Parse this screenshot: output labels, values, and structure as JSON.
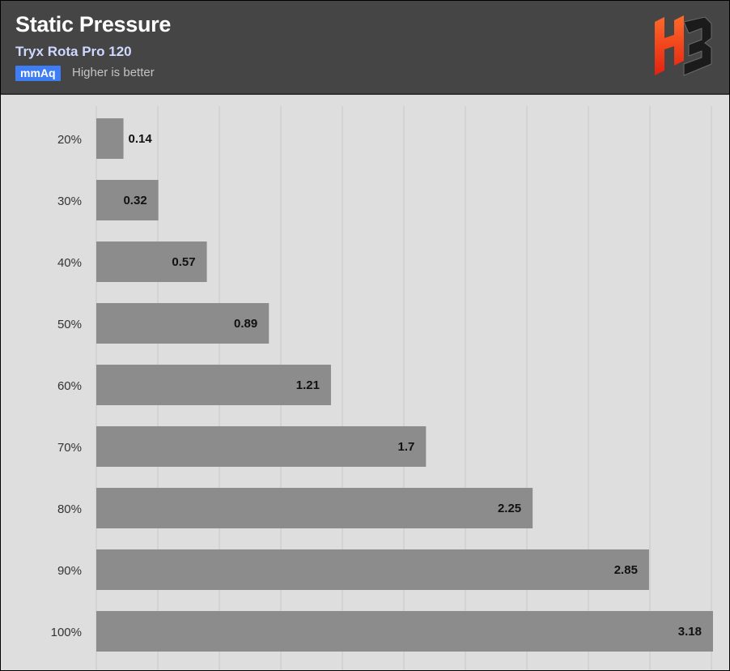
{
  "header": {
    "title": "Static Pressure",
    "subtitle": "Tryx Rota Pro 120",
    "unit": "mmAq",
    "note": "Higher is better"
  },
  "logo": {
    "icon": "hb-logo-icon",
    "colors": [
      "#ff3b1f",
      "#1a1a1a"
    ]
  },
  "colors": {
    "bar": "#8c8c8c",
    "plot_background": "#dedede",
    "header_background": "#454545",
    "unit_badge": "#3f7df5",
    "gridline": "#c8c8c8"
  },
  "chart_data": {
    "type": "bar",
    "orientation": "horizontal",
    "title": "Static Pressure",
    "subtitle": "Tryx Rota Pro 120",
    "unit": "mmAq",
    "categories": [
      "20%",
      "30%",
      "40%",
      "50%",
      "60%",
      "70%",
      "80%",
      "90%",
      "100%"
    ],
    "values": [
      0.14,
      0.32,
      0.57,
      0.89,
      1.21,
      1.7,
      2.25,
      2.85,
      3.18
    ],
    "value_labels": [
      "0.14",
      "0.32",
      "0.57",
      "0.89",
      "1.21",
      "1.7",
      "2.25",
      "2.85",
      "3.18"
    ],
    "xlim": [
      0,
      3.18
    ],
    "grid": true,
    "legend": "none"
  }
}
